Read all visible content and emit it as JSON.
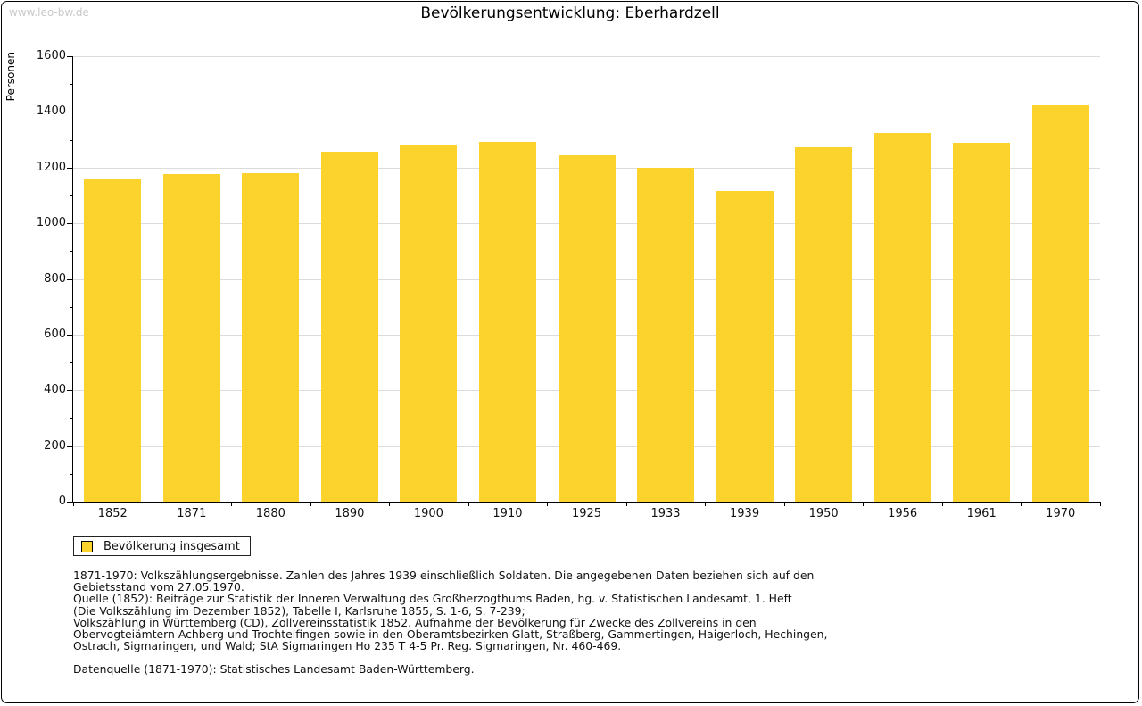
{
  "watermark": "www.leo-bw.de",
  "title": "Bevölkerungsentwicklung: Eberhardzell",
  "chart_data": {
    "type": "bar",
    "title": "Bevölkerungsentwicklung: Eberhardzell",
    "xlabel": "",
    "ylabel": "Personen",
    "categories": [
      "1852",
      "1871",
      "1880",
      "1890",
      "1900",
      "1910",
      "1925",
      "1933",
      "1939",
      "1950",
      "1956",
      "1961",
      "1970"
    ],
    "series": [
      {
        "name": "Bevölkerung insgesamt",
        "color": "#FCD32D",
        "values": [
          1160,
          1176,
          1180,
          1258,
          1283,
          1292,
          1243,
          1200,
          1115,
          1272,
          1323,
          1289,
          1424
        ]
      }
    ],
    "ylim": [
      0,
      1600
    ],
    "y_major_step": 200,
    "y_minor_step": 100,
    "grid": true,
    "gridline_color": "#dcdcdc",
    "legend_position": "bottom-left"
  },
  "legend": {
    "items": [
      {
        "label": "Bevölkerung insgesamt",
        "color": "#FCD32D"
      }
    ]
  },
  "footnotes": {
    "lines": [
      "1871-1970: Volkszählungsergebnisse. Zahlen des Jahres 1939 einschließlich Soldaten. Die angegebenen Daten beziehen sich auf den",
      "Gebietsstand vom 27.05.1970.",
      "Quelle (1852): Beiträge zur Statistik der Inneren Verwaltung des Großherzogthums Baden, hg. v. Statistischen Landesamt, 1. Heft",
      "(Die Volkszählung im Dezember 1852), Tabelle I, Karlsruhe 1855, S. 1-6, S. 7-239;",
      "Volkszählung in Württemberg (CD), Zollvereinsstatistik 1852. Aufnahme der Bevölkerung für Zwecke des Zollvereins in den",
      "Obervogteiämtern Achberg und Trochtelfingen sowie in den Oberamtsbezirken Glatt, Straßberg, Gammertingen, Haigerloch, Hechingen,",
      "Ostrach, Sigmaringen, und Wald; StA Sigmaringen Ho 235 T 4-5 Pr. Reg. Sigmaringen, Nr. 460-469."
    ],
    "datasource": "Datenquelle (1871-1970): Statistisches Landesamt Baden-Württemberg."
  }
}
